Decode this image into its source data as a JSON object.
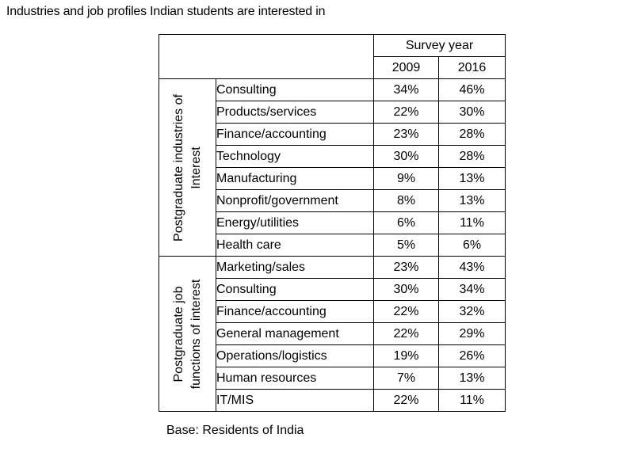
{
  "title": "Industries and job profiles Indian students are interested in",
  "footnote": "Base: Residents of India",
  "chart_data": {
    "type": "table",
    "header": {
      "group_label": "Survey year",
      "years": [
        "2009",
        "2016"
      ]
    },
    "groups": [
      {
        "label_lines": [
          "Postgraduate industries of",
          "Interest"
        ],
        "rows": [
          {
            "label": "Consulting",
            "values": [
              "34%",
              "46%"
            ]
          },
          {
            "label": "Products/services",
            "values": [
              "22%",
              "30%"
            ]
          },
          {
            "label": "Finance/accounting",
            "values": [
              "23%",
              "28%"
            ]
          },
          {
            "label": "Technology",
            "values": [
              "30%",
              "28%"
            ]
          },
          {
            "label": "Manufacturing",
            "values": [
              "9%",
              "13%"
            ]
          },
          {
            "label": "Nonprofit/government",
            "values": [
              "8%",
              "13%"
            ]
          },
          {
            "label": "Energy/utilities",
            "values": [
              "6%",
              "11%"
            ]
          },
          {
            "label": "Health care",
            "values": [
              "5%",
              "6%"
            ]
          }
        ]
      },
      {
        "label_lines": [
          "Postgraduate job",
          "functions of interest"
        ],
        "rows": [
          {
            "label": "Marketing/sales",
            "values": [
              "23%",
              "43%"
            ]
          },
          {
            "label": "Consulting",
            "values": [
              "30%",
              "34%"
            ]
          },
          {
            "label": "Finance/accounting",
            "values": [
              "22%",
              "32%"
            ]
          },
          {
            "label": "General management",
            "values": [
              "22%",
              "29%"
            ]
          },
          {
            "label": "Operations/logistics",
            "values": [
              "19%",
              "26%"
            ]
          },
          {
            "label": "Human resources",
            "values": [
              "7%",
              "13%"
            ]
          },
          {
            "label": "IT/MIS",
            "values": [
              "22%",
              "11%"
            ]
          }
        ]
      }
    ]
  }
}
